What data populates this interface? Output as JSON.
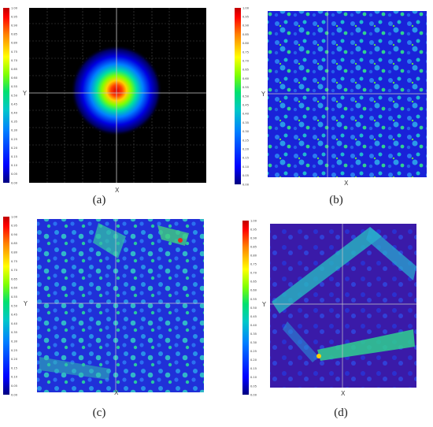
{
  "figure": {
    "panels": [
      {
        "id": "a",
        "caption": "(a)",
        "x_axis_label": "X",
        "y_axis_label": "Y",
        "map_kind": "gaussian-spot"
      },
      {
        "id": "b",
        "caption": "(b)",
        "x_axis_label": "X",
        "y_axis_label": "Y",
        "map_kind": "speckle"
      },
      {
        "id": "c",
        "caption": "(c)",
        "x_axis_label": "X",
        "y_axis_label": "Y",
        "map_kind": "speckle-bands"
      },
      {
        "id": "d",
        "caption": "(d)",
        "x_axis_label": "X",
        "y_axis_label": "Y",
        "map_kind": "tilted-frame"
      }
    ],
    "colorbar": {
      "ticks": [
        "1.00",
        "0.95",
        "0.90",
        "0.85",
        "0.80",
        "0.75",
        "0.70",
        "0.65",
        "0.60",
        "0.55",
        "0.50",
        "0.45",
        "0.40",
        "0.35",
        "0.30",
        "0.25",
        "0.20",
        "0.15",
        "0.10",
        "0.05",
        "0.00"
      ],
      "colors": [
        "#000080",
        "#0000ff",
        "#0080ff",
        "#00c8c8",
        "#00e070",
        "#80ff00",
        "#ffff00",
        "#ff8000",
        "#ff0000",
        "#c00000"
      ]
    },
    "colors": {
      "background_a": "#000000",
      "background_blue": "#1a1adc",
      "crosshair": "#c8c8c8"
    }
  }
}
